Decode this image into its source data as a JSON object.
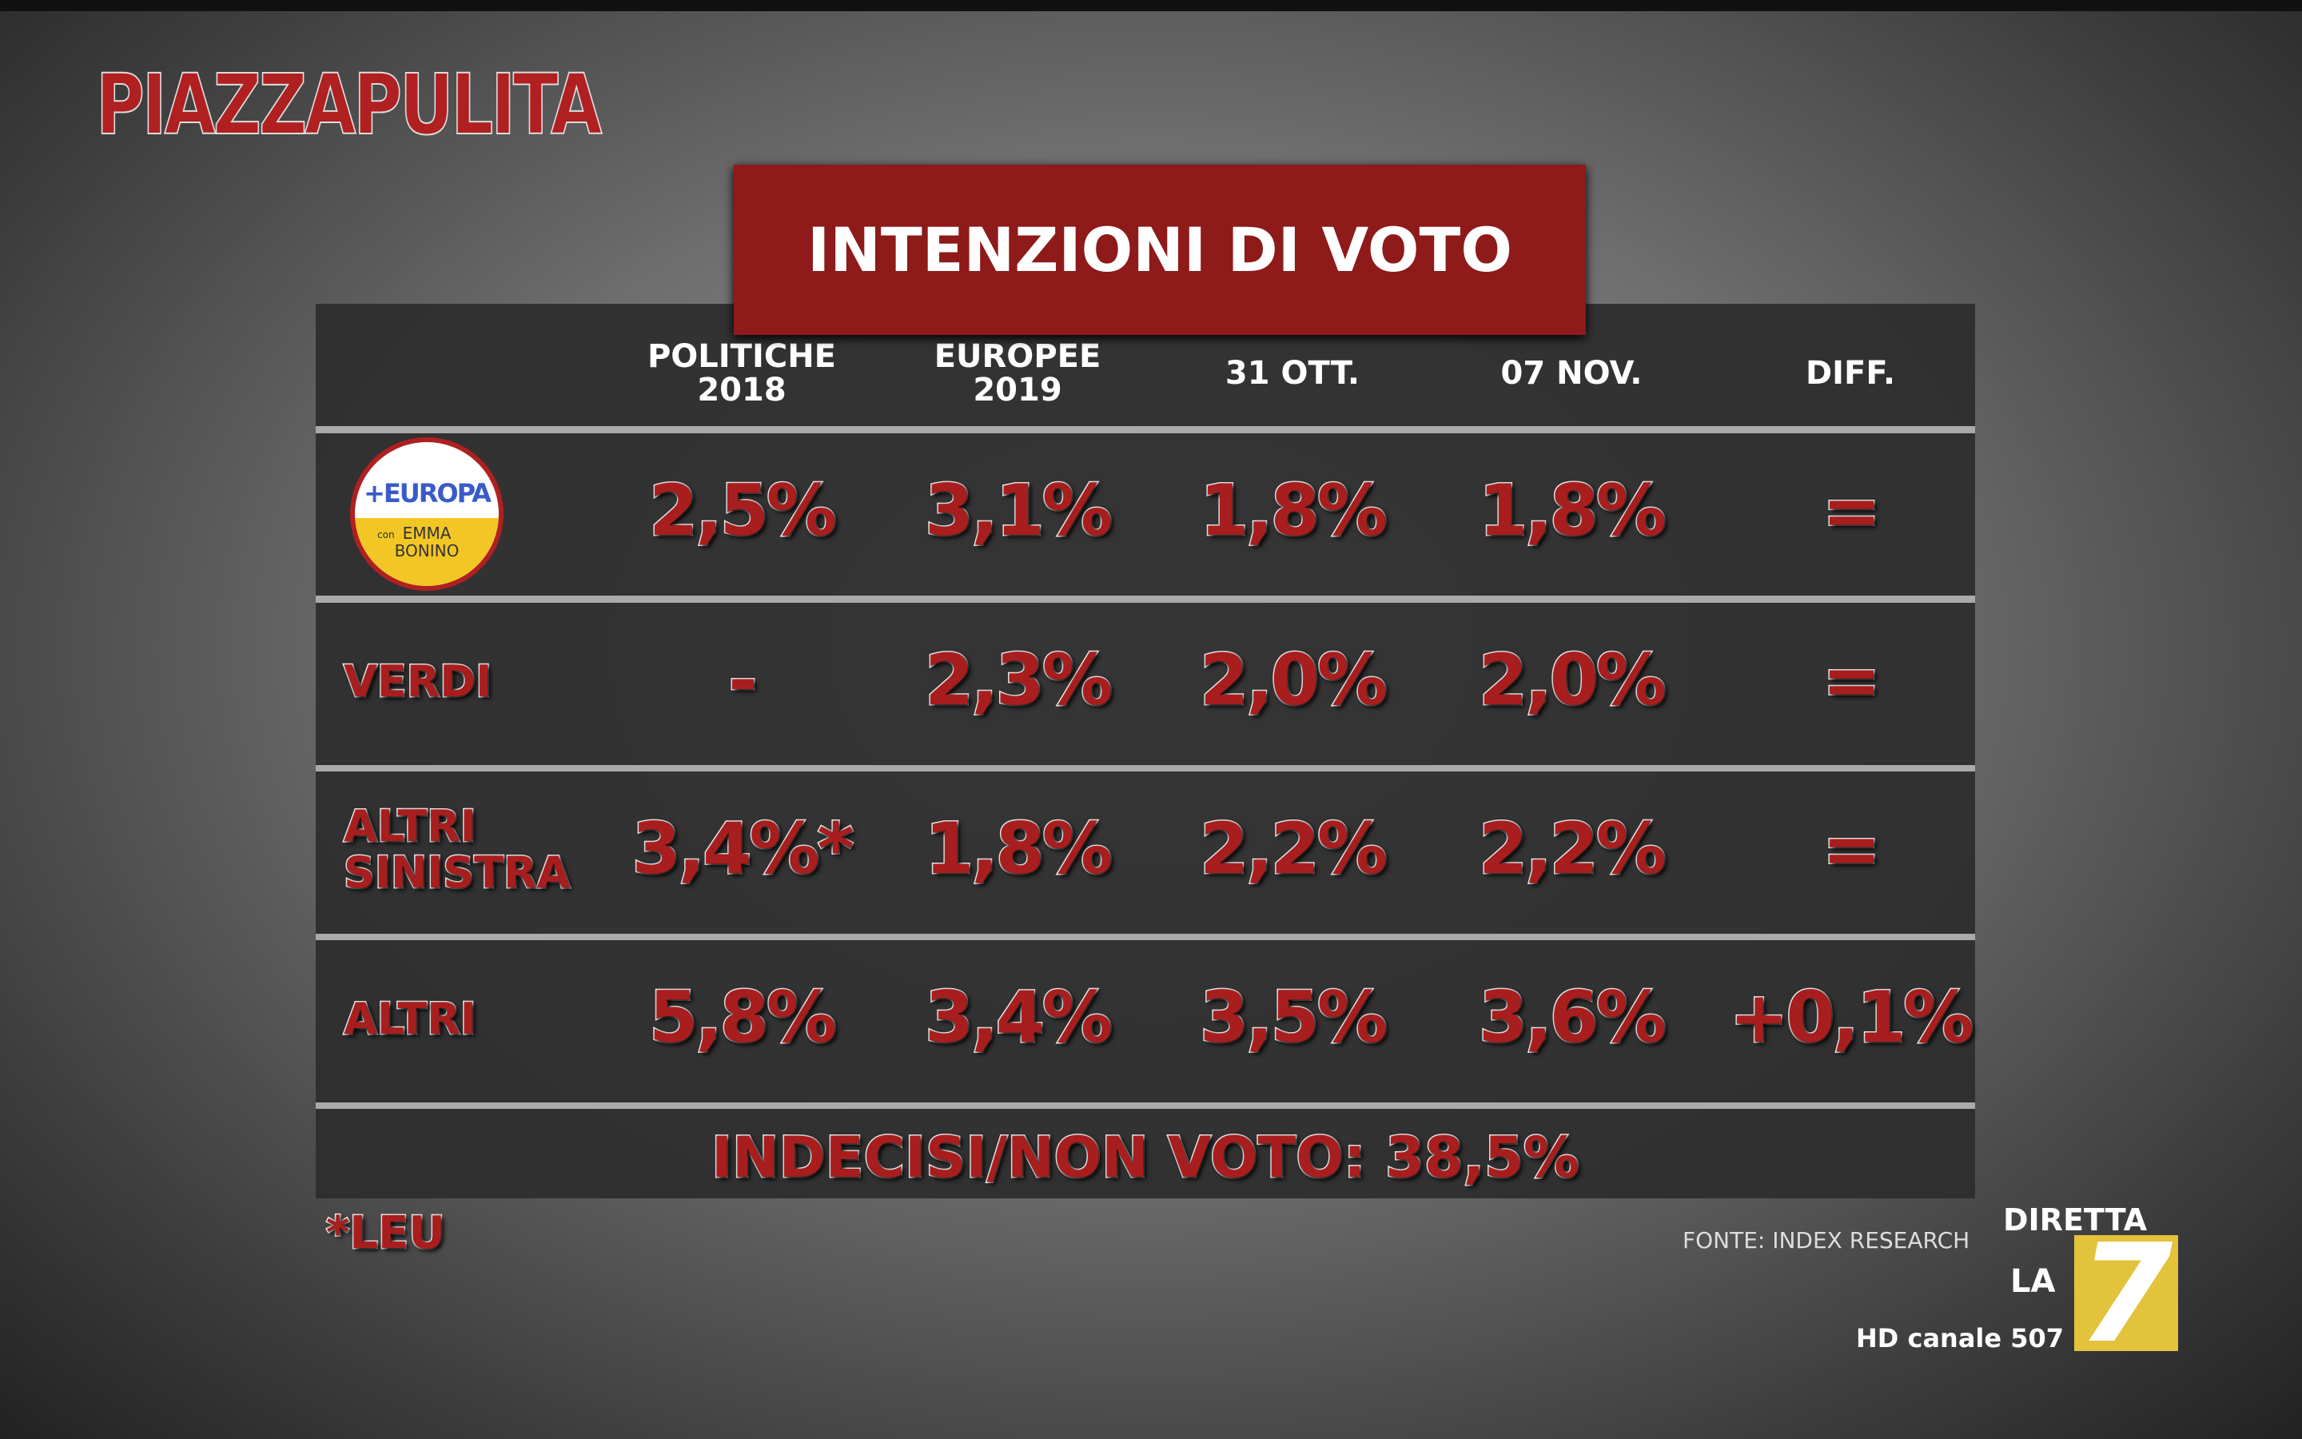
{
  "brand": "PIAZZAPULITA",
  "title": "INTENZIONI DI VOTO",
  "table": {
    "header": [
      "POLITICHE 2018",
      "EUROPEE 2019",
      "31 OTT.",
      "07 NOV.",
      "DIFF."
    ],
    "rows": [
      {
        "logo": {
          "name": "+EUROPA",
          "with": "con",
          "leader": "EMMA BONINO"
        },
        "values": [
          "2,5%",
          "3,1%",
          "1,8%",
          "1,8%",
          "="
        ]
      },
      {
        "label": "VERDI",
        "values": [
          "-",
          "2,3%",
          "2,0%",
          "2,0%",
          "="
        ]
      },
      {
        "label": "ALTRI SINISTRA",
        "values": [
          "3,4%*",
          "1,8%",
          "2,2%",
          "2,2%",
          "="
        ]
      },
      {
        "label": "ALTRI",
        "values": [
          "5,8%",
          "3,4%",
          "3,5%",
          "3,6%",
          "+0,1%"
        ]
      }
    ],
    "footer": "INDECISI/NON VOTO: 38,5%"
  },
  "note": "*LEU",
  "source": "FONTE: INDEX RESEARCH",
  "channel": {
    "live": "DIRETTA",
    "la": "LA",
    "seven": "7",
    "hd": "HD canale 507"
  }
}
